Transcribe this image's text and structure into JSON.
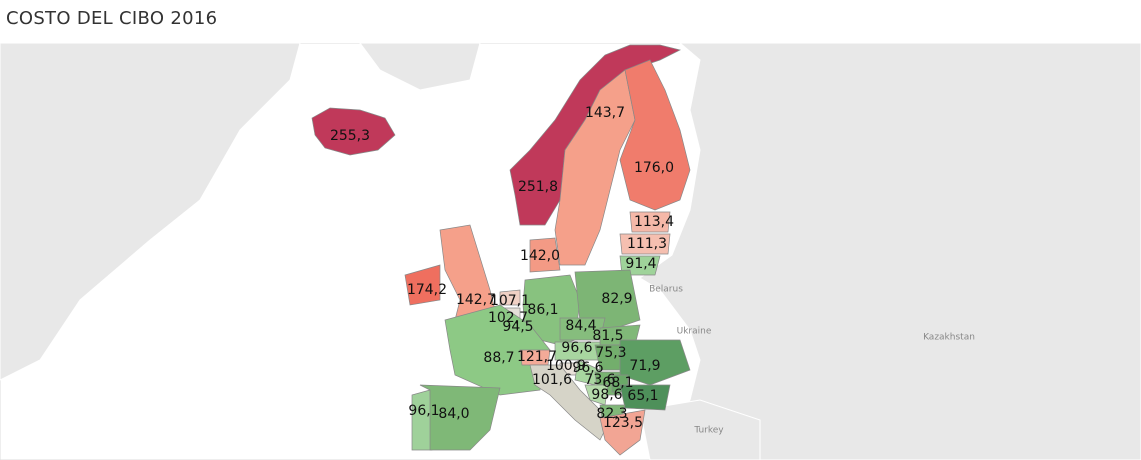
{
  "title": "COSTO DEL CIBO 2016",
  "regions": [
    {
      "label": "255,3",
      "color": "#c0395a"
    },
    {
      "label": "251,8",
      "color": "#c0395a"
    },
    {
      "label": "143,7",
      "color": "#f5a08a"
    },
    {
      "label": "176,0",
      "color": "#f07c6c"
    },
    {
      "label": "113,4",
      "color": "#f5b8a8"
    },
    {
      "label": "111,3",
      "color": "#f5bfb0"
    },
    {
      "label": "91,4",
      "color": "#9fd39a"
    },
    {
      "label": "142,0",
      "color": "#f39a85"
    },
    {
      "label": "174,2",
      "color": "#ef6f5f"
    },
    {
      "label": "142,7",
      "color": "#f5a08a"
    },
    {
      "label": "107,1",
      "color": "#f0d0c4"
    },
    {
      "label": "86,1",
      "color": "#88c27f"
    },
    {
      "label": "102,7",
      "color": "#e6e0d8"
    },
    {
      "label": "94,5",
      "color": "#a7d49d"
    },
    {
      "label": "82,9",
      "color": "#7db575"
    },
    {
      "label": "84,4",
      "color": "#86bd7d"
    },
    {
      "label": "81,5",
      "color": "#80b878"
    },
    {
      "label": "96,6",
      "color": "#a8d6a0"
    },
    {
      "label": "75,3",
      "color": "#73ae6c"
    },
    {
      "label": "88,7",
      "color": "#8dc985"
    },
    {
      "label": "121,7",
      "color": "#f3aa98"
    },
    {
      "label": "71,9",
      "color": "#5d9e63"
    },
    {
      "label": "100,9",
      "color": "#e9e2d9"
    },
    {
      "label": "96,6",
      "color": "#a8d6a0"
    },
    {
      "label": "101,6",
      "color": "#d6d4c8"
    },
    {
      "label": "73,6",
      "color": "#79b371"
    },
    {
      "label": "68,1",
      "color": "#6aa868"
    },
    {
      "label": "98,6",
      "color": "#b5dbab"
    },
    {
      "label": "65,1",
      "color": "#4e905a"
    },
    {
      "label": "82,3",
      "color": "#80b878"
    },
    {
      "label": "123,5",
      "color": "#f2a594"
    },
    {
      "label": "96,1",
      "color": "#9fd19a"
    },
    {
      "label": "84,0",
      "color": "#7fb877"
    }
  ],
  "place_labels": [
    "Belarus",
    "Ukraine",
    "Kazakhstan",
    "Turkey"
  ]
}
